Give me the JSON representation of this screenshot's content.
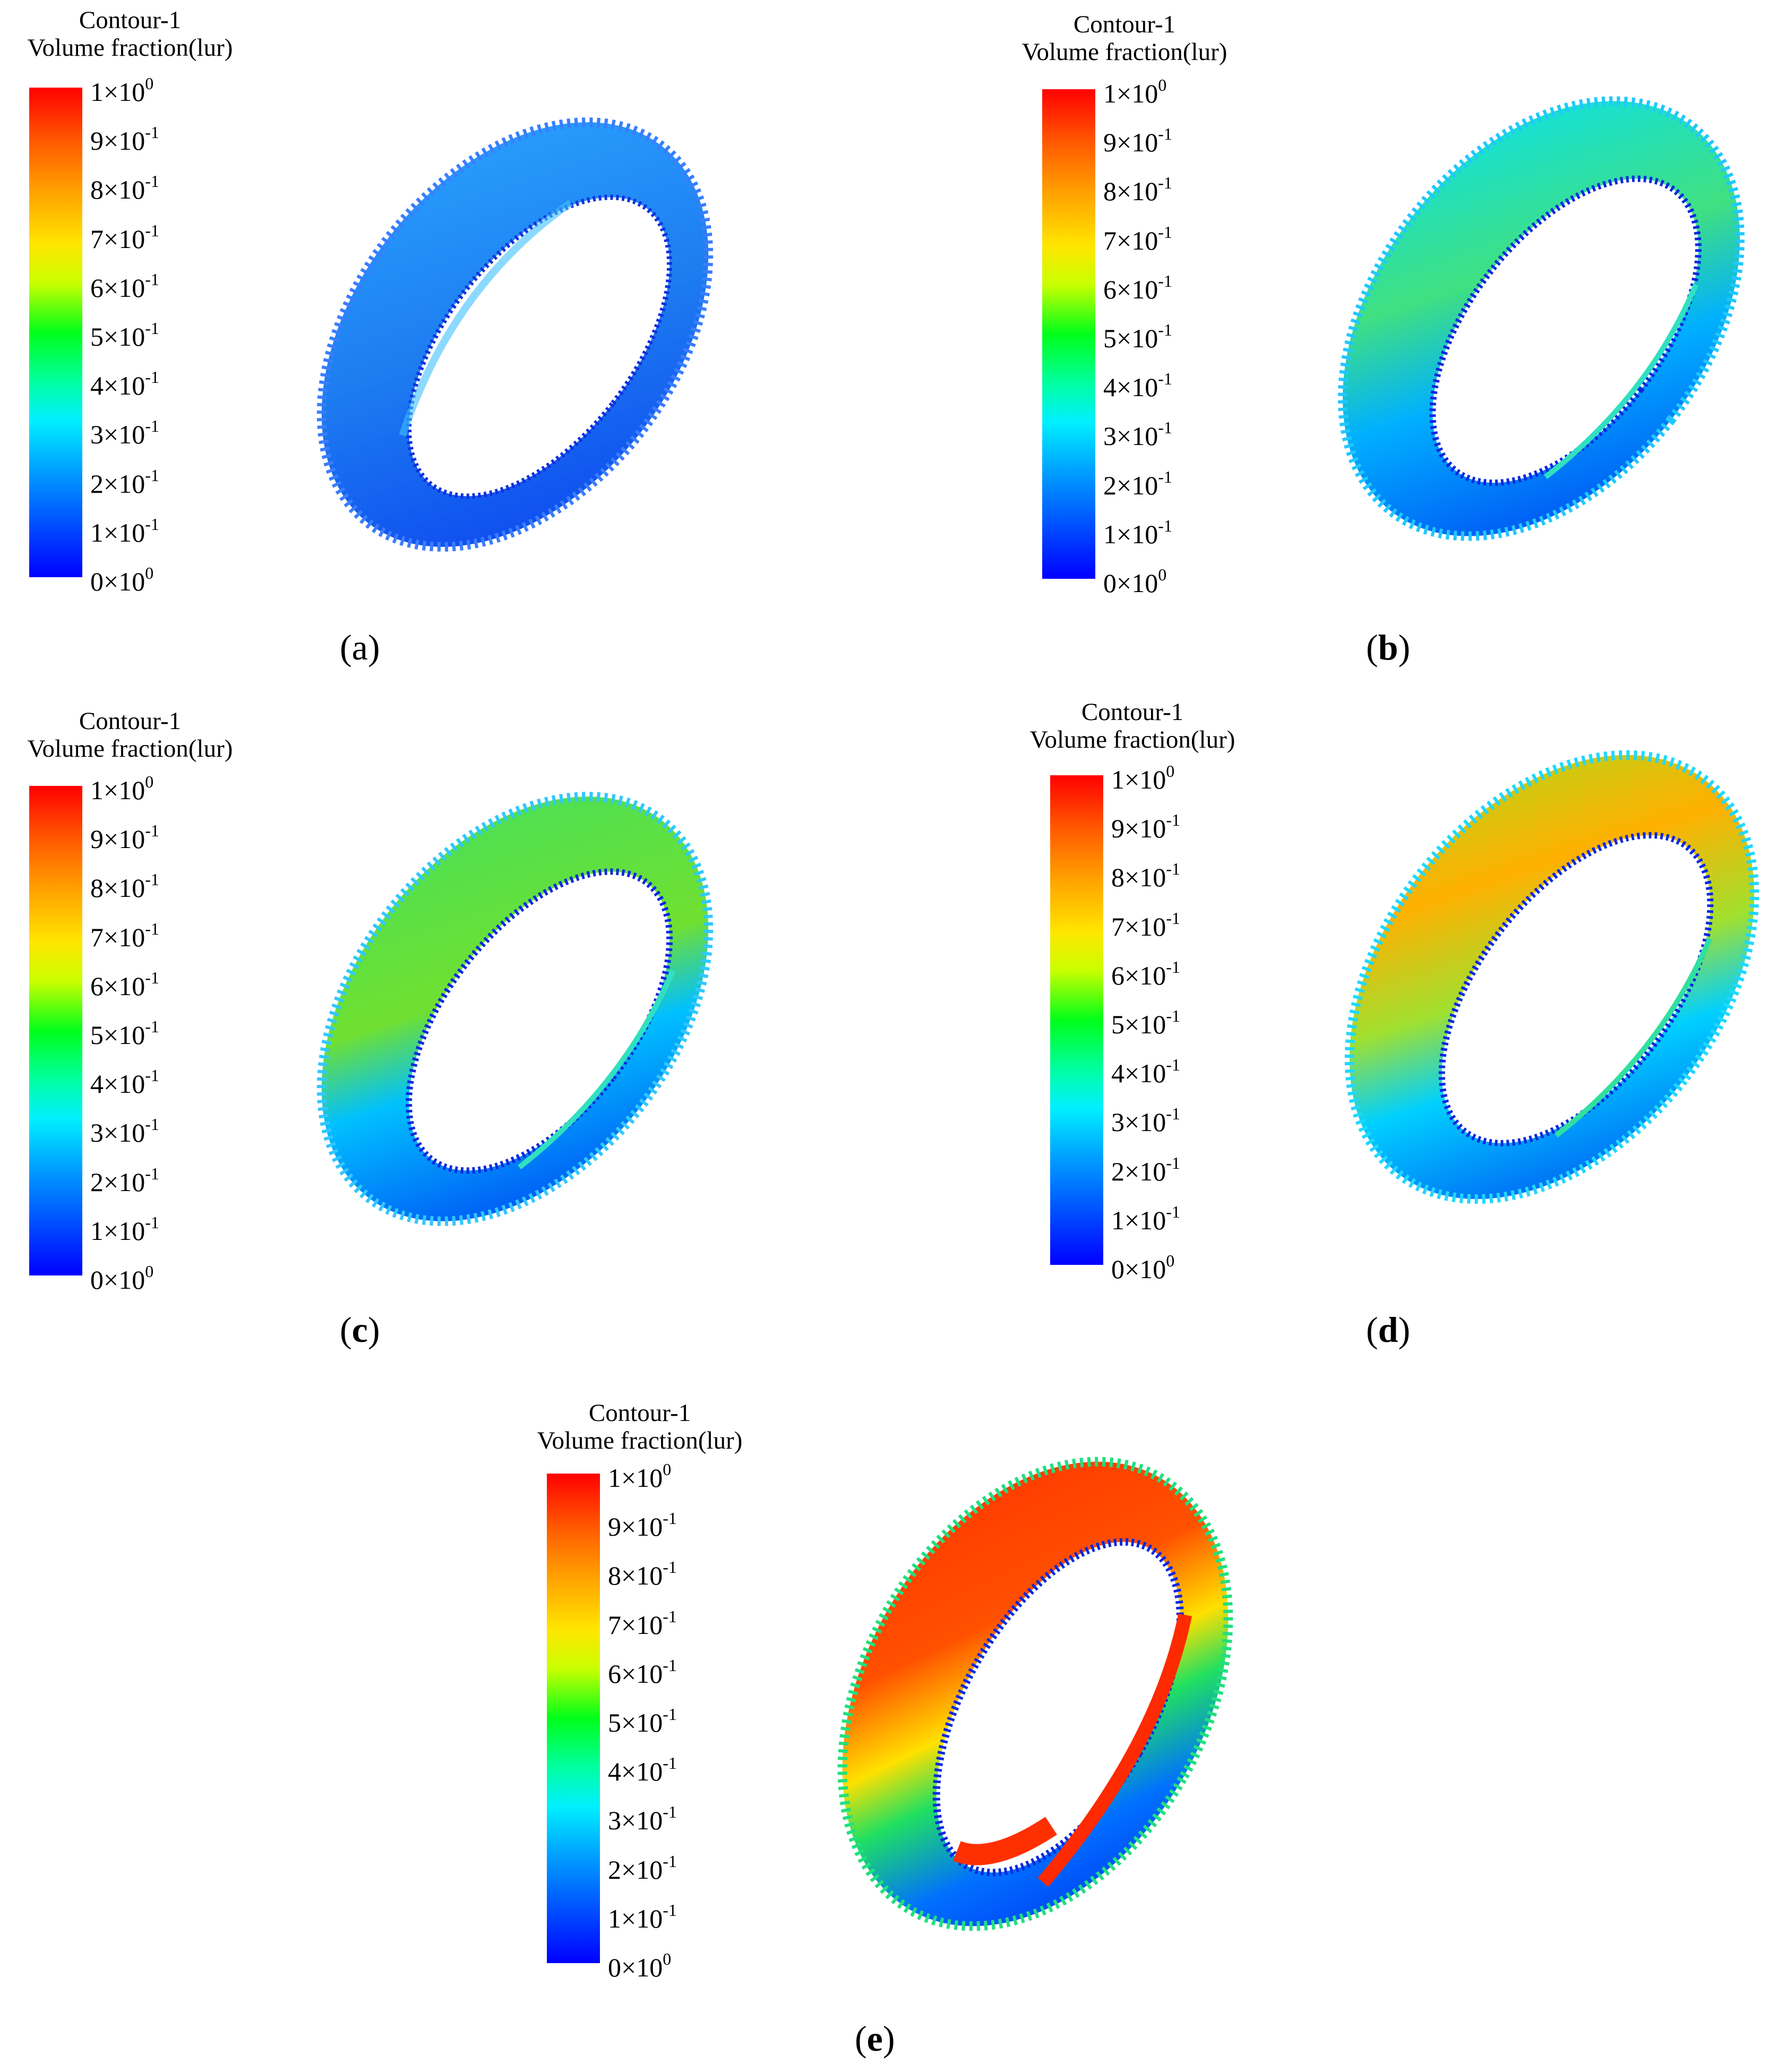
{
  "legend": {
    "title_line1": "Contour-1",
    "title_line2": "Volume fraction(lur)",
    "ticks": [
      {
        "base": "1×10",
        "exp": "0"
      },
      {
        "base": "9×10",
        "exp": "-1"
      },
      {
        "base": "8×10",
        "exp": "-1"
      },
      {
        "base": "7×10",
        "exp": "-1"
      },
      {
        "base": "6×10",
        "exp": "-1"
      },
      {
        "base": "5×10",
        "exp": "-1"
      },
      {
        "base": "4×10",
        "exp": "-1"
      },
      {
        "base": "3×10",
        "exp": "-1"
      },
      {
        "base": "2×10",
        "exp": "-1"
      },
      {
        "base": "1×10",
        "exp": "-1"
      },
      {
        "base": "0×10",
        "exp": "0"
      }
    ]
  },
  "panels": {
    "a": {
      "open": "(",
      "letter": "a",
      "close": ")"
    },
    "b": {
      "open": "(",
      "letter": "b",
      "close": ")"
    },
    "c": {
      "open": "(",
      "letter": "c",
      "close": ")"
    },
    "d": {
      "open": "(",
      "letter": "d",
      "close": ")"
    },
    "e": {
      "open": "(",
      "letter": "e",
      "close": ")"
    }
  },
  "colors": {
    "low": "#0000ff",
    "mid": "#00ff1a",
    "high": "#ff0000",
    "cyan": "#00d8ff",
    "yellow": "#ffe600"
  }
}
